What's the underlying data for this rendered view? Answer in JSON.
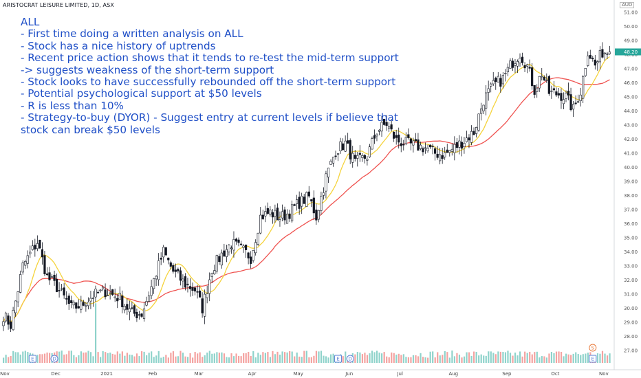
{
  "header": {
    "symbol_line": "ARISTOCRAT LEISURE LIMITED, 1D, ASX"
  },
  "currency": "AUD",
  "annotation": [
    "ALL",
    "- First time doing a written analysis on ALL",
    "- Stock has a nice history of uptrends",
    "- Recent price action shows that it tends to re-test the mid-term support",
    "-> suggests weakness of the short-term support",
    "- Stock looks to have successfully rebounded off the short-term support",
    "- Potential psychological support at $50 levels",
    "- R is less than 10%",
    "- Strategy-to-buy (DYOR) - Suggest entry at current levels if believe that",
    "stock can break $50 levels"
  ],
  "colors": {
    "up": "#26a69a",
    "down": "#131722",
    "candle_up_fill": "#ffffff",
    "ma_short": "#f5d33c",
    "ma_long": "#ef5350",
    "vol_up": "#8fd3cb",
    "vol_down": "#f4a3a1",
    "annotation_text": "#1f4fc7",
    "earnings_badge": "#5a7fd6",
    "dividend_badge": "#5a7fd6",
    "split_badge": "#e8793a"
  },
  "chart_data": {
    "type": "candlestick",
    "title": "ARISTOCRAT LEISURE LIMITED, 1D, ASX",
    "y_axis": {
      "min": 26.5,
      "max": 51.3,
      "ticks": [
        27.0,
        28.0,
        29.0,
        30.0,
        31.0,
        32.0,
        33.0,
        34.0,
        35.0,
        36.0,
        37.0,
        38.0,
        39.0,
        40.0,
        41.0,
        42.0,
        43.0,
        44.0,
        45.0,
        46.0,
        47.0,
        48.0,
        49.0,
        50.0,
        51.0
      ]
    },
    "y_tick_labels": [
      "27.00",
      "28.00",
      "29.00",
      "30.00",
      "31.00",
      "32.00",
      "33.00",
      "34.00",
      "35.00",
      "36.00",
      "37.00",
      "38.00",
      "39.00",
      "40.00",
      "41.00",
      "42.00",
      "43.00",
      "44.00",
      "45.00",
      "46.00",
      "47.00",
      "48.00",
      "49.00",
      "50.00",
      "51.00"
    ],
    "last_price_label": "48.20",
    "x_tick_labels": [
      {
        "label": "Nov",
        "day": 0
      },
      {
        "label": "Dec",
        "day": 21
      },
      {
        "label": "2021",
        "day": 42
      },
      {
        "label": "Feb",
        "day": 61
      },
      {
        "label": "Mar",
        "day": 80
      },
      {
        "label": "Apr",
        "day": 102
      },
      {
        "label": "May",
        "day": 121
      },
      {
        "label": "Jun",
        "day": 142
      },
      {
        "label": "Jul",
        "day": 163
      },
      {
        "label": "Aug",
        "day": 185
      },
      {
        "label": "Sep",
        "day": 207
      },
      {
        "label": "Oct",
        "day": 227
      },
      {
        "label": "Nov",
        "day": 247
      }
    ],
    "price_path": [
      [
        0,
        29.5
      ],
      [
        3,
        28.8
      ],
      [
        8,
        33.0
      ],
      [
        14,
        34.7
      ],
      [
        18,
        32.2
      ],
      [
        22,
        31.5
      ],
      [
        28,
        30.0
      ],
      [
        32,
        30.2
      ],
      [
        37,
        30.9
      ],
      [
        42,
        31.2
      ],
      [
        48,
        30.7
      ],
      [
        53,
        29.6
      ],
      [
        57,
        29.6
      ],
      [
        61,
        31.5
      ],
      [
        66,
        34.0
      ],
      [
        70,
        32.6
      ],
      [
        75,
        31.7
      ],
      [
        79,
        31.3
      ],
      [
        82,
        30.0
      ],
      [
        86,
        32.8
      ],
      [
        90,
        33.8
      ],
      [
        94,
        34.6
      ],
      [
        98,
        34.2
      ],
      [
        102,
        33.6
      ],
      [
        106,
        36.5
      ],
      [
        110,
        36.8
      ],
      [
        114,
        36.4
      ],
      [
        118,
        36.8
      ],
      [
        122,
        37.5
      ],
      [
        126,
        37.9
      ],
      [
        129,
        36.5
      ],
      [
        133,
        39.3
      ],
      [
        137,
        41.2
      ],
      [
        141,
        41.7
      ],
      [
        145,
        40.3
      ],
      [
        150,
        40.8
      ],
      [
        154,
        42.6
      ],
      [
        158,
        43.1
      ],
      [
        162,
        41.9
      ],
      [
        166,
        41.7
      ],
      [
        170,
        41.5
      ],
      [
        174,
        41.4
      ],
      [
        178,
        41.0
      ],
      [
        182,
        40.9
      ],
      [
        186,
        41.4
      ],
      [
        190,
        41.9
      ],
      [
        194,
        42.5
      ],
      [
        198,
        44.8
      ],
      [
        202,
        45.8
      ],
      [
        206,
        46.3
      ],
      [
        210,
        47.5
      ],
      [
        213,
        48.1
      ],
      [
        216,
        47.2
      ],
      [
        219,
        45.5
      ],
      [
        222,
        46.7
      ],
      [
        225,
        45.3
      ],
      [
        229,
        45.2
      ],
      [
        232,
        45.0
      ],
      [
        235,
        44.1
      ],
      [
        238,
        45.4
      ],
      [
        241,
        48.3
      ],
      [
        244,
        47.2
      ],
      [
        247,
        48.2
      ]
    ],
    "volume_spikes": [
      {
        "day": 38,
        "level": 0.85
      },
      {
        "day": 141,
        "level": 0.55
      },
      {
        "day": 240,
        "level": 0.45
      }
    ],
    "events": [
      {
        "type": "earnings",
        "glyph": "E",
        "day": 12
      },
      {
        "type": "dividend",
        "glyph": "D",
        "day": 21
      },
      {
        "type": "earnings",
        "glyph": "E",
        "day": 138
      },
      {
        "type": "dividend",
        "glyph": "D",
        "day": 143
      },
      {
        "type": "split",
        "glyph": "S",
        "day": 243
      },
      {
        "type": "earnings",
        "glyph": "E",
        "day": 243
      }
    ],
    "moving_averages": [
      {
        "type": "short-term",
        "period": 10
      },
      {
        "type": "mid-term",
        "period": 30
      }
    ]
  }
}
